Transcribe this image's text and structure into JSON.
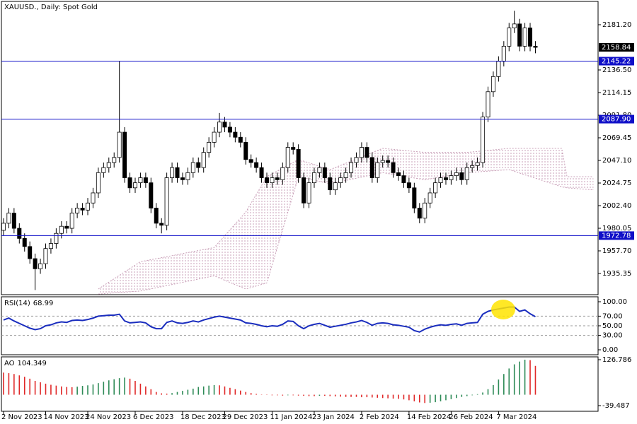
{
  "chart_data": [
    {
      "type": "candlestick",
      "title": "XAUUSD., Daily:  Spot Gold",
      "xlim": [
        -0.4,
        112.9
      ],
      "ylim": [
        1914.4,
        2204.25
      ],
      "yticks": [
        {
          "value": 2181.2,
          "label": "2181.20"
        },
        {
          "value": 2136.5,
          "label": "2136.50"
        },
        2114.15,
        {
          "value": 2091.8,
          "label": "2091.80"
        },
        2069.45,
        {
          "value": 2047.1,
          "label": "2047.10"
        },
        2024.75,
        {
          "value": 2002.4,
          "label": "2002.40"
        },
        1980.05,
        {
          "value": 1957.7,
          "label": "1957.70"
        },
        1935.35
      ],
      "levels": [
        2145.22,
        {
          "value": 2087.9,
          "label": "2087.90"
        },
        1972.78
      ],
      "level_color": "#1010c8",
      "up_color": "#ffffff",
      "down_color": "#000000",
      "open": [
        1978,
        1985,
        1995,
        1980,
        1970,
        1962,
        1950,
        1940,
        1945,
        1960,
        1965,
        1975,
        1982,
        1980,
        1995,
        2000,
        1998,
        2005,
        2015,
        2035,
        2040,
        2045,
        2050,
        2075,
        2030,
        2020,
        2025,
        2030,
        2025,
        2000,
        1985,
        1983,
        2030,
        2040,
        2030,
        2028,
        2035,
        2045,
        2040,
        2055,
        2065,
        2075,
        2085,
        2080,
        2075,
        2070,
        2065,
        2048,
        2045,
        2040,
        2030,
        2025,
        2030,
        2028,
        2040,
        2060,
        2058,
        2030,
        2005,
        2025,
        2035,
        2040,
        2030,
        2018,
        2025,
        2030,
        2035,
        2045,
        2050,
        2060,
        2050,
        2030,
        2045,
        2047,
        2045,
        2035,
        2032,
        2025,
        2020,
        2000,
        1990,
        2005,
        2015,
        2025,
        2030,
        2028,
        2032,
        2035,
        2028,
        2040,
        2042,
        2045,
        2090,
        2115,
        2130,
        2145,
        2160,
        2178,
        2182,
        2160,
        2178,
        2160
      ],
      "high": [
        1990,
        2000,
        2000,
        1985,
        1975,
        1967,
        1955,
        1950,
        1965,
        1970,
        1980,
        1987,
        1987,
        2000,
        2005,
        2005,
        2010,
        2020,
        2040,
        2045,
        2050,
        2055,
        2145,
        2080,
        2035,
        2030,
        2035,
        2035,
        2030,
        2005,
        1990,
        2035,
        2045,
        2045,
        2035,
        2040,
        2050,
        2050,
        2060,
        2070,
        2080,
        2094,
        2090,
        2085,
        2080,
        2075,
        2070,
        2053,
        2050,
        2045,
        2035,
        2035,
        2035,
        2045,
        2065,
        2065,
        2063,
        2035,
        2030,
        2040,
        2045,
        2045,
        2035,
        2030,
        2035,
        2040,
        2050,
        2055,
        2065,
        2065,
        2055,
        2050,
        2052,
        2052,
        2050,
        2040,
        2037,
        2030,
        2025,
        2005,
        2010,
        2020,
        2030,
        2035,
        2035,
        2037,
        2040,
        2040,
        2045,
        2047,
        2050,
        2095,
        2120,
        2135,
        2150,
        2165,
        2183,
        2195,
        2187,
        2183,
        2183,
        2165
      ],
      "low": [
        1973,
        1980,
        1975,
        1965,
        1957,
        1945,
        1919,
        1935,
        1940,
        1955,
        1960,
        1970,
        1975,
        1975,
        1990,
        1993,
        1993,
        2000,
        2010,
        2030,
        2035,
        2040,
        2045,
        2025,
        2015,
        2015,
        2020,
        2020,
        1995,
        1980,
        1975,
        1978,
        2025,
        2025,
        2023,
        2023,
        2030,
        2035,
        2035,
        2050,
        2060,
        2070,
        2075,
        2070,
        2065,
        2060,
        2043,
        2040,
        2035,
        2025,
        2020,
        2020,
        2023,
        2023,
        2035,
        2053,
        2025,
        2000,
        2000,
        2020,
        2030,
        2025,
        2013,
        2013,
        2020,
        2025,
        2030,
        2040,
        2045,
        2045,
        2025,
        2025,
        2040,
        2040,
        2030,
        2027,
        2020,
        2015,
        1995,
        1985,
        1985,
        2000,
        2010,
        2020,
        2023,
        2023,
        2027,
        2023,
        2023,
        2035,
        2037,
        2040,
        2085,
        2110,
        2125,
        2140,
        2155,
        2173,
        2155,
        2155,
        2155,
        2153
      ],
      "close": [
        1985,
        1995,
        1980,
        1970,
        1962,
        1950,
        1940,
        1945,
        1960,
        1965,
        1975,
        1982,
        1980,
        1995,
        2000,
        1998,
        2005,
        2015,
        2035,
        2040,
        2045,
        2050,
        2075,
        2030,
        2020,
        2025,
        2030,
        2025,
        2000,
        1985,
        1983,
        2030,
        2040,
        2030,
        2028,
        2035,
        2045,
        2040,
        2055,
        2065,
        2075,
        2085,
        2080,
        2075,
        2070,
        2065,
        2048,
        2045,
        2040,
        2030,
        2025,
        2030,
        2028,
        2040,
        2060,
        2058,
        2030,
        2005,
        2025,
        2035,
        2040,
        2030,
        2018,
        2025,
        2030,
        2035,
        2045,
        2050,
        2060,
        2050,
        2030,
        2045,
        2047,
        2045,
        2035,
        2032,
        2025,
        2020,
        2000,
        1990,
        2005,
        2015,
        2025,
        2030,
        2028,
        2032,
        2035,
        2028,
        2040,
        2042,
        2045,
        2090,
        2115,
        2130,
        2145,
        2160,
        2178,
        2182,
        2160,
        2178,
        2160,
        2158.84
      ],
      "cloud": {
        "color": "#c9a0b8",
        "x": [
          18,
          26,
          40,
          46,
          50,
          56,
          62,
          72,
          80,
          88,
          96,
          106,
          107,
          112
        ],
        "upper": [
          1920,
          1947,
          1961,
          1996,
          2031,
          2048,
          2038,
          2059,
          2055,
          2055,
          2059,
          2059,
          2031,
          2031
        ],
        "lower": [
          1915,
          1918,
          1933,
          1920,
          1926,
          2031,
          2024,
          2035,
          2028,
          2035,
          2038,
          2021,
          2020,
          2018
        ]
      }
    },
    {
      "type": "line",
      "title": "RSI(14)",
      "color": "#1a2dbe",
      "xlim": [
        -0.4,
        112.9
      ],
      "ylim": [
        -10.3,
        110.3
      ],
      "yticks": [
        {
          "value": 100,
          "label": "100.00"
        },
        {
          "value": 70,
          "label": "70.00"
        },
        {
          "value": 50,
          "label": "50.00"
        },
        {
          "value": 30,
          "label": "30.00"
        },
        {
          "value": 0,
          "label": "0.00"
        }
      ],
      "values": [
        62,
        66,
        60,
        55,
        50,
        45,
        42,
        44,
        50,
        52,
        56,
        58,
        57,
        61,
        62,
        61,
        63,
        66,
        70,
        71,
        72,
        72,
        74,
        60,
        56,
        57,
        58,
        56,
        48,
        44,
        44,
        57,
        60,
        56,
        55,
        57,
        60,
        58,
        62,
        65,
        68,
        70,
        68,
        66,
        64,
        62,
        56,
        55,
        53,
        50,
        48,
        50,
        49,
        53,
        60,
        59,
        50,
        44,
        50,
        53,
        55,
        51,
        47,
        49,
        51,
        53,
        56,
        58,
        61,
        57,
        51,
        55,
        56,
        55,
        52,
        51,
        49,
        47,
        40,
        37,
        43,
        47,
        50,
        52,
        51,
        53,
        54,
        51,
        55,
        56,
        57,
        74,
        80,
        83,
        85,
        87,
        89,
        89,
        80,
        83,
        75,
        68.99
      ]
    },
    {
      "type": "bar",
      "title": "AO",
      "up_color": "#2e8b57",
      "down_color": "#e02828",
      "xlim": [
        -0.4,
        112.9
      ],
      "ylim": [
        -59.95,
        137.0
      ],
      "yticks": [
        126.786,
        -39.487
      ],
      "xticks": [
        {
          "value": 0,
          "label": "2 Nov 2023"
        },
        {
          "value": 8,
          "label": "14 Nov 2023"
        },
        {
          "value": 16,
          "label": "24 Nov 2023"
        },
        {
          "value": 25,
          "label": "6 Dec 2023"
        },
        {
          "value": 34,
          "label": "18 Dec 2023"
        },
        {
          "value": 42,
          "label": "29 Dec 2023"
        },
        {
          "value": 51,
          "label": "11 Jan 2024"
        },
        {
          "value": 59,
          "label": "23 Jan 2024"
        },
        {
          "value": 68,
          "label": "2 Feb 2024"
        },
        {
          "value": 77,
          "label": "14 Feb 2024"
        },
        {
          "value": 85,
          "label": "26 Feb 2024"
        },
        {
          "value": 94,
          "label": "7 Mar 2024"
        }
      ],
      "values": [
        80,
        78,
        75,
        70,
        65,
        58,
        50,
        45,
        40,
        36,
        33,
        30,
        28,
        27,
        29,
        32,
        34,
        37,
        42,
        47,
        52,
        56,
        60,
        62,
        58,
        50,
        40,
        30,
        20,
        10,
        5,
        4,
        6,
        10,
        14,
        18,
        22,
        28,
        30,
        33,
        35,
        34,
        30,
        25,
        20,
        15,
        10,
        6,
        3,
        1,
        -1,
        -2,
        -2,
        -3,
        -2,
        -2,
        -3,
        -4,
        -5,
        -5,
        -4,
        -4,
        -5,
        -6,
        -7,
        -8,
        -8,
        -8,
        -9,
        -9,
        -10,
        -11,
        -12,
        -13,
        -14,
        -15,
        -17,
        -20,
        -24,
        -28,
        -30,
        -29,
        -27,
        -24,
        -20,
        -16,
        -12,
        -8,
        -5,
        -2,
        2,
        8,
        20,
        35,
        55,
        75,
        95,
        110,
        120,
        126.786,
        125,
        104.349
      ]
    }
  ]
}
